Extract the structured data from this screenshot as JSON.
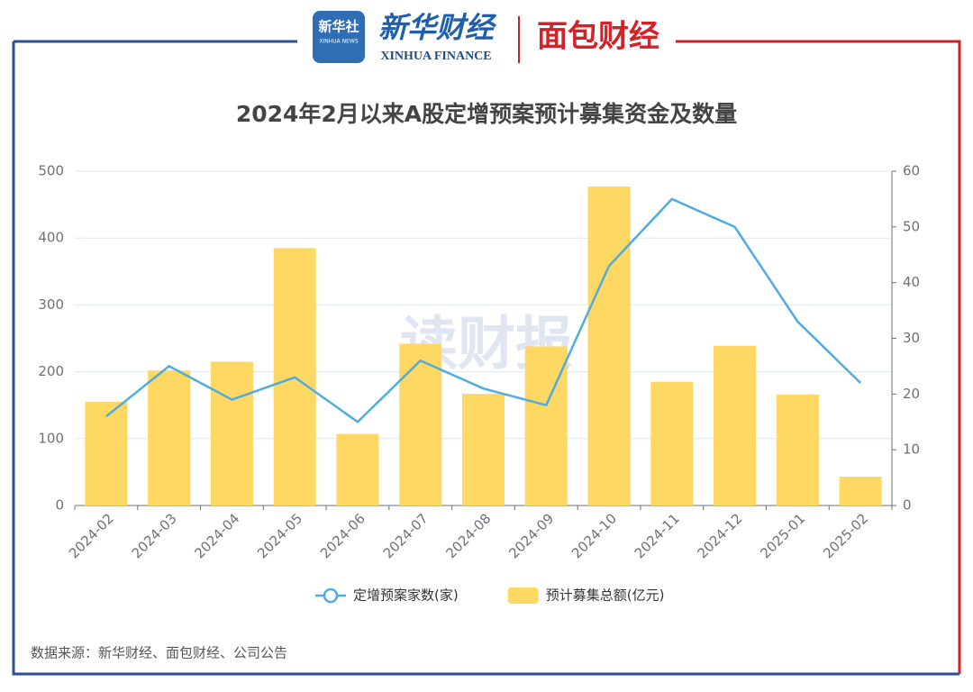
{
  "header": {
    "logo_1": "新华社",
    "logo_1_en": "XINHUA NEWS",
    "logo_2": "新华财经",
    "logo_2_en": "XINHUA FINANCE",
    "logo_3": "面包财经"
  },
  "chart_data": {
    "type": "combo",
    "title": "2024年2月以来A股定增预案预计募集资金及数量",
    "watermark": "读财报",
    "source": "数据来源：新华财经、面包财经、公司公告",
    "categories": [
      "2024-02",
      "2024-03",
      "2024-04",
      "2024-05",
      "2024-06",
      "2024-07",
      "2024-08",
      "2024-09",
      "2024-10",
      "2024-11",
      "2024-12",
      "2025-01",
      "2025-02"
    ],
    "series": [
      {
        "name": "定增预案家数(家)",
        "type": "line",
        "axis": "y2",
        "color": "#4fabe0",
        "values": [
          16,
          25,
          19,
          23,
          15,
          26,
          21,
          18,
          43,
          55,
          50,
          33,
          22
        ]
      },
      {
        "name": "预计募集总额(亿元)",
        "type": "bar",
        "axis": "y",
        "color": "#fed862",
        "values": [
          155,
          202,
          215,
          385,
          107,
          242,
          167,
          238,
          477,
          185,
          239,
          166,
          43
        ]
      }
    ],
    "ylim": [
      0,
      500
    ],
    "yticks": [
      0,
      100,
      200,
      300,
      400,
      500
    ],
    "y2lim": [
      0,
      60
    ],
    "y2ticks": [
      0,
      10,
      20,
      30,
      40,
      50,
      60
    ],
    "grid": true
  }
}
